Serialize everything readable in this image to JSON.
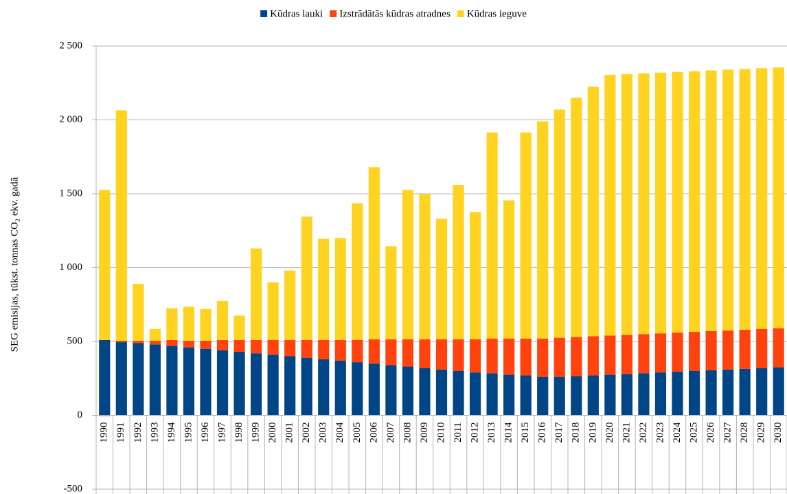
{
  "chart_data": {
    "type": "stacked_bar",
    "y_label": "SEG emisijas, tūkst. tonnas CO₂ ekv. gadā",
    "categories": [
      "1990",
      "1991",
      "1992",
      "1993",
      "1994",
      "1995",
      "1996",
      "1997",
      "1998",
      "1999",
      "2000",
      "2001",
      "2002",
      "2003",
      "2004",
      "2005",
      "2006",
      "2007",
      "2008",
      "2009",
      "2010",
      "2011",
      "2012",
      "2013",
      "2014",
      "2015",
      "2016",
      "2017",
      "2018",
      "2019",
      "2020",
      "2021",
      "2022",
      "2023",
      "2024",
      "2025",
      "2026",
      "2027",
      "2028",
      "2029",
      "2030"
    ],
    "series": [
      {
        "name": "Kūdras lauki",
        "color": "#004586",
        "values": [
          510,
          495,
          490,
          480,
          470,
          460,
          450,
          440,
          430,
          420,
          410,
          400,
          390,
          380,
          370,
          360,
          350,
          340,
          330,
          320,
          310,
          300,
          290,
          285,
          275,
          270,
          260,
          260,
          265,
          270,
          275,
          280,
          285,
          290,
          295,
          300,
          305,
          310,
          315,
          320,
          325
        ]
      },
      {
        "name": "Izstrādātās kūdras atradnes",
        "color": "#ff420e",
        "values": [
          -5,
          10,
          15,
          25,
          40,
          45,
          55,
          70,
          80,
          90,
          100,
          110,
          120,
          130,
          140,
          150,
          165,
          175,
          185,
          195,
          205,
          215,
          225,
          235,
          245,
          250,
          260,
          265,
          265,
          265,
          265,
          265,
          265,
          265,
          265,
          265,
          265,
          265,
          265,
          265,
          265
        ]
      },
      {
        "name": "Kūdras ieguve",
        "color": "#ffd320",
        "values": [
          1015,
          1560,
          385,
          80,
          215,
          230,
          215,
          265,
          165,
          620,
          390,
          470,
          835,
          685,
          690,
          925,
          1165,
          630,
          1010,
          985,
          815,
          1045,
          860,
          1395,
          935,
          1395,
          1470,
          1545,
          1620,
          1690,
          1765,
          1765,
          1765,
          1765,
          1765,
          1765,
          1765,
          1765,
          1765,
          1765,
          1765
        ]
      }
    ],
    "ylim": [
      -500,
      2500
    ],
    "yticks": [
      -500,
      0,
      {
        "value": 500,
        "label": "500"
      },
      {
        "value": 1000,
        "label": "1 000"
      },
      {
        "value": 1500,
        "label": "1 500"
      },
      {
        "value": 2000,
        "label": "2 000"
      },
      {
        "value": 2500,
        "label": "2 500"
      }
    ],
    "grid": true,
    "legend": "top"
  }
}
